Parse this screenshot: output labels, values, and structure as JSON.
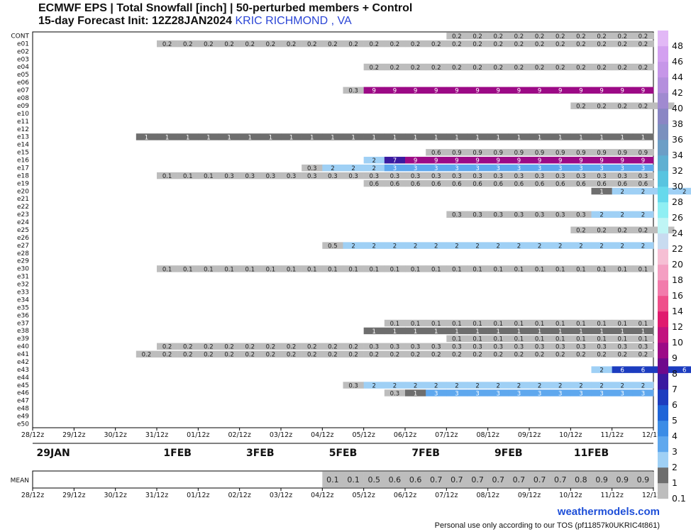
{
  "header": {
    "line1": "ECMWF EPS | Total Snowfall [inch] | 50-perturbed members + Control",
    "line2": "15-day Forecast Init: 12Z28JAN2024",
    "station": "KRIC RICHMOND      , VA"
  },
  "footer": {
    "site": "weathermodels.com",
    "tos": "Personal use only according to our TOS (pf11857k0UKRIC4t861)"
  },
  "chart_data": {
    "type": "heatmap",
    "members": [
      "CONT",
      "e01",
      "e02",
      "e03",
      "e04",
      "e05",
      "e06",
      "e07",
      "e08",
      "e09",
      "e10",
      "e11",
      "e12",
      "e13",
      "e14",
      "e15",
      "e16",
      "e17",
      "e18",
      "e19",
      "e20",
      "e21",
      "e22",
      "e23",
      "e24",
      "e25",
      "e26",
      "e27",
      "e28",
      "e29",
      "e30",
      "e31",
      "e32",
      "e33",
      "e34",
      "e35",
      "e36",
      "e37",
      "e38",
      "e39",
      "e40",
      "e41",
      "e42",
      "e43",
      "e44",
      "e45",
      "e46",
      "e47",
      "e48",
      "e49",
      "e50"
    ],
    "time_ticks": [
      "28/12z",
      "29/12z",
      "30/12z",
      "31/12z",
      "01/12z",
      "02/12z",
      "03/12z",
      "04/12z",
      "05/12z",
      "06/12z",
      "07/12z",
      "08/12z",
      "09/12z",
      "10/12z",
      "11/12z",
      "12/12z"
    ],
    "date_labels": [
      {
        "label": "29JAN",
        "day": 0.5
      },
      {
        "label": "1FEB",
        "day": 3.5
      },
      {
        "label": "3FEB",
        "day": 5.5
      },
      {
        "label": "5FEB",
        "day": 7.5
      },
      {
        "label": "7FEB",
        "day": 9.5
      },
      {
        "label": "9FEB",
        "day": 11.5
      },
      {
        "label": "11FEB",
        "day": 13.5
      }
    ],
    "step_days": 0.5,
    "total_days": 15,
    "mean_label": "MEAN",
    "colorbar": {
      "levels": [
        0.1,
        1,
        2,
        3,
        4,
        5,
        6,
        7,
        8,
        9,
        10,
        12,
        14,
        16,
        18,
        20,
        22,
        24,
        26,
        28,
        30,
        32,
        34,
        36,
        38,
        40,
        42,
        44,
        46,
        48
      ],
      "labels": [
        "0.1",
        "1",
        "2",
        "3",
        "4",
        "5",
        "6",
        "7",
        "8",
        "9",
        "10",
        "12",
        "14",
        "16",
        "18",
        "20",
        "22",
        "24",
        "26",
        "28",
        "30",
        "32",
        "34",
        "36",
        "38",
        "40",
        "42",
        "44",
        "46",
        "48"
      ],
      "colors": [
        "#bdbdbd",
        "#6e6e6e",
        "#9fd0f5",
        "#5fa8ee",
        "#3b8ce6",
        "#1e64d8",
        "#1c3cbf",
        "#3a1aa0",
        "#6e0a8c",
        "#9c0a86",
        "#c2127e",
        "#e01a6e",
        "#ef4f8a",
        "#f27bab",
        "#f49fc2",
        "#f6bfd4",
        "#c8dbf0",
        "#bff5f5",
        "#8feff3",
        "#66d9ec",
        "#58c4e0",
        "#5fb0d2",
        "#6c9ec6",
        "#7a90be",
        "#8a86c4",
        "#a08ad0",
        "#b48fdd",
        "#c696e8",
        "#d3a0f0",
        "#e2b8f6"
      ]
    },
    "series": [
      {
        "name": "CONT",
        "start": 10.0,
        "values": [
          0.2,
          0.2,
          0.2,
          0.2,
          0.2,
          0.2,
          0.2,
          0.2,
          0.2,
          0.2
        ]
      },
      {
        "name": "e01",
        "start": 3.0,
        "values": [
          0.2,
          0.2,
          0.2,
          0.2,
          0.2,
          0.2,
          0.2,
          0.2,
          0.2,
          0.2,
          0.2,
          0.2,
          0.2,
          0.2,
          0.2,
          0.2,
          0.2,
          0.2,
          0.2,
          0.2,
          0.2,
          0.2,
          0.2,
          0.2
        ]
      },
      {
        "name": "e04",
        "start": 8.0,
        "values": [
          0.2,
          0.2,
          0.2,
          0.2,
          0.2,
          0.2,
          0.2,
          0.2,
          0.2,
          0.2,
          0.2,
          0.2,
          0.2,
          0.2
        ]
      },
      {
        "name": "e07",
        "start": 7.5,
        "values": [
          0.3,
          9,
          9,
          9,
          9,
          9,
          9,
          9,
          9,
          9,
          9,
          9,
          9,
          9,
          9
        ]
      },
      {
        "name": "e09",
        "start": 13.0,
        "values": [
          0.2,
          0.2,
          0.2,
          0.2,
          0.2
        ]
      },
      {
        "name": "e13",
        "start": 2.5,
        "values": [
          1,
          1,
          1,
          1,
          1,
          1,
          1,
          1,
          1,
          1,
          1,
          1,
          1,
          1,
          1,
          1,
          1,
          1,
          1,
          1,
          1,
          1,
          1,
          1,
          1
        ]
      },
      {
        "name": "e15",
        "start": 9.5,
        "values": [
          0.6,
          0.9,
          0.9,
          0.9,
          0.9,
          0.9,
          0.9,
          0.9,
          0.9,
          0.9,
          0.9
        ]
      },
      {
        "name": "e16",
        "start": 8.0,
        "values": [
          2,
          7,
          9,
          9,
          9,
          9,
          9,
          9,
          9,
          9,
          9,
          9,
          9,
          9
        ]
      },
      {
        "name": "e17",
        "start": 6.5,
        "values": [
          0.3,
          2,
          2,
          2,
          3,
          3,
          3,
          3,
          3,
          3,
          3,
          3,
          3,
          3,
          3,
          3,
          3
        ]
      },
      {
        "name": "e18",
        "start": 3.0,
        "values": [
          0.1,
          0.1,
          0.1,
          0.3,
          0.3,
          0.3,
          0.3,
          0.3,
          0.3,
          0.3,
          0.3,
          0.3,
          0.3,
          0.3,
          0.3,
          0.3,
          0.3,
          0.3,
          0.3,
          0.3,
          0.3,
          0.3,
          0.3,
          0.3
        ]
      },
      {
        "name": "e19",
        "start": 8.0,
        "values": [
          0.6,
          0.6,
          0.6,
          0.6,
          0.6,
          0.6,
          0.6,
          0.6,
          0.6,
          0.6,
          0.6,
          0.6,
          0.6,
          0.6
        ]
      },
      {
        "name": "e20",
        "start": 13.5,
        "values": [
          1,
          2,
          2,
          2,
          2
        ]
      },
      {
        "name": "e23",
        "start": 10.0,
        "values": [
          0.3,
          0.3,
          0.3,
          0.3,
          0.3,
          0.3,
          0.3,
          2,
          2,
          2
        ]
      },
      {
        "name": "e25",
        "start": 13.0,
        "values": [
          0.2,
          0.2,
          0.2,
          0.2,
          0.2
        ]
      },
      {
        "name": "e27",
        "start": 7.0,
        "values": [
          0.5,
          2,
          2,
          2,
          2,
          2,
          2,
          2,
          2,
          2,
          2,
          2,
          2,
          2,
          2,
          2
        ]
      },
      {
        "name": "e30",
        "start": 3.0,
        "values": [
          0.1,
          0.1,
          0.1,
          0.1,
          0.1,
          0.1,
          0.1,
          0.1,
          0.1,
          0.1,
          0.1,
          0.1,
          0.1,
          0.1,
          0.1,
          0.1,
          0.1,
          0.1,
          0.1,
          0.1,
          0.1,
          0.1,
          0.1,
          0.1
        ]
      },
      {
        "name": "e37",
        "start": 8.5,
        "values": [
          0.1,
          0.1,
          0.1,
          0.1,
          0.1,
          0.1,
          0.1,
          0.1,
          0.1,
          0.1,
          0.1,
          0.1,
          0.1
        ]
      },
      {
        "name": "e38",
        "start": 8.0,
        "values": [
          1,
          1,
          1,
          1,
          1,
          1,
          1,
          1,
          1,
          1,
          1,
          1,
          1,
          1
        ]
      },
      {
        "name": "e39",
        "start": 10.0,
        "values": [
          0.1,
          0.1,
          0.1,
          0.1,
          0.1,
          0.1,
          0.1,
          0.1,
          0.1,
          0.1
        ]
      },
      {
        "name": "e40",
        "start": 3.0,
        "values": [
          0.2,
          0.2,
          0.2,
          0.2,
          0.2,
          0.2,
          0.2,
          0.2,
          0.2,
          0.2,
          0.3,
          0.3,
          0.3,
          0.3,
          0.3,
          0.3,
          0.3,
          0.3,
          0.3,
          0.3,
          0.3,
          0.3,
          0.3,
          0.3
        ]
      },
      {
        "name": "e41",
        "start": 2.5,
        "values": [
          0.2,
          0.2,
          0.2,
          0.2,
          0.2,
          0.2,
          0.2,
          0.2,
          0.2,
          0.2,
          0.2,
          0.2,
          0.2,
          0.2,
          0.2,
          0.2,
          0.2,
          0.2,
          0.2,
          0.2,
          0.2,
          0.2,
          0.2,
          0.2,
          0.2
        ]
      },
      {
        "name": "e43",
        "start": 13.5,
        "values": [
          2,
          6,
          6,
          6,
          6
        ]
      },
      {
        "name": "e45",
        "start": 7.5,
        "values": [
          0.3,
          2,
          2,
          2,
          2,
          2,
          2,
          2,
          2,
          2,
          2,
          2,
          2,
          2,
          2
        ]
      },
      {
        "name": "e46",
        "start": 8.5,
        "values": [
          0.3,
          1,
          3,
          3,
          3,
          3,
          3,
          3,
          3,
          3,
          3,
          3,
          3
        ]
      }
    ],
    "mean": {
      "start": 7.0,
      "values": [
        0.1,
        0.1,
        0.5,
        0.6,
        0.6,
        0.7,
        0.7,
        0.7,
        0.7,
        0.7,
        0.7,
        0.7,
        0.8,
        0.9,
        0.9,
        0.9
      ]
    }
  }
}
